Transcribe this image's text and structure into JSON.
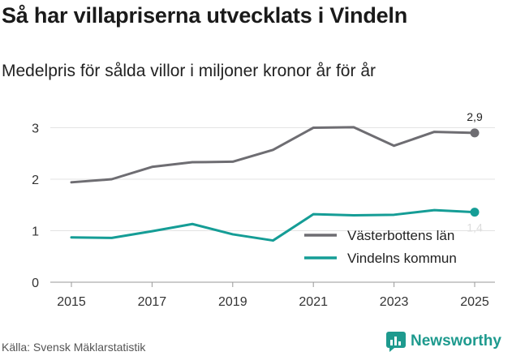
{
  "header": {
    "title": "Så har villapriserna utvecklats i Vindeln",
    "subtitle": "Medelpris för sålda villor i miljoner kronor år för år"
  },
  "footer": {
    "source": "Källa: Svensk Mäklarstatistik",
    "brand": "Newsworthy",
    "brand_icon": "bar-chart-logo-icon"
  },
  "colors": {
    "vasterbotten": "#6e6d72",
    "vindeln": "#159d96",
    "brand": "#1e9a8e",
    "grid": "#e3e3e3"
  },
  "chart_data": {
    "type": "line",
    "x": [
      2015,
      2016,
      2017,
      2018,
      2019,
      2020,
      2021,
      2022,
      2023,
      2024,
      2025
    ],
    "x_ticks": [
      "2015",
      "2017",
      "2019",
      "2021",
      "2023",
      "2025"
    ],
    "y_ticks": [
      "0",
      "1",
      "2",
      "3"
    ],
    "ylim": [
      0,
      3.2
    ],
    "grid": true,
    "legend_position": "bottom-right",
    "series": [
      {
        "name": "Västerbottens län",
        "color": "#6e6d72",
        "values": [
          1.94,
          2.0,
          2.24,
          2.33,
          2.34,
          2.57,
          3.0,
          3.01,
          2.65,
          2.92,
          2.9
        ],
        "end_label": "2,9"
      },
      {
        "name": "Vindelns kommun",
        "color": "#159d96",
        "values": [
          0.87,
          0.86,
          0.99,
          1.13,
          0.93,
          0.81,
          1.32,
          1.3,
          1.31,
          1.4,
          1.36
        ],
        "end_label": "1,4"
      }
    ]
  }
}
